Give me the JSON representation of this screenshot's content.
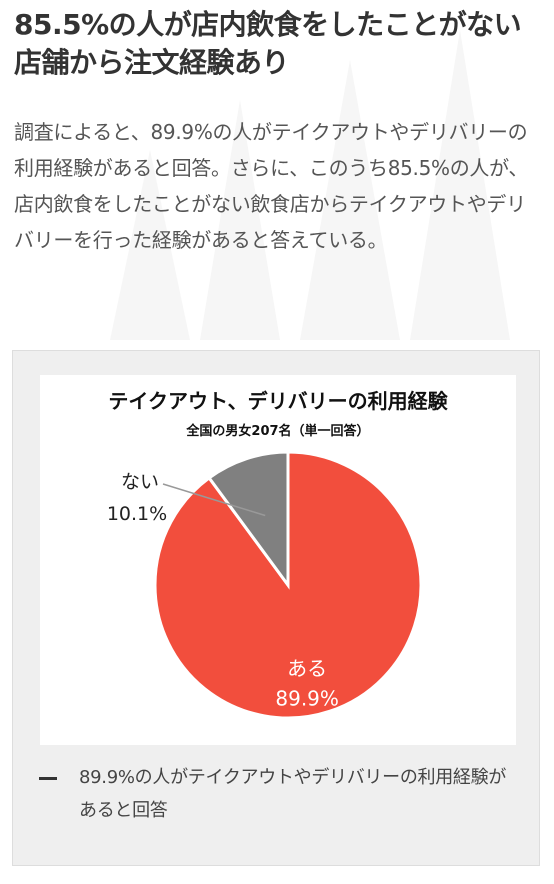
{
  "article": {
    "headline": "85.5%の人が店内飲食をしたことがない店舗から注文経験あり",
    "body": "調査によると、89.9%の人がテイクアウトやデリバリーの利用経験があると回答。さらに、このうち85.5%の人が、店内飲食をしたことがない飲食店からテイクアウトやデリバリーを行った経験があると答えている。"
  },
  "figure": {
    "caption": "89.9%の人がテイクアウトやデリバリーの利用経験があると回答"
  },
  "chart_data": {
    "type": "pie",
    "title": "テイクアウト、デリバリーの利用経験",
    "subtitle": "全国の男女207名（単一回答）",
    "slices": [
      {
        "label": "ある",
        "value": 89.9,
        "value_label": "89.9%",
        "color": "#f24e3d"
      },
      {
        "label": "ない",
        "value": 10.1,
        "value_label": "10.1%",
        "color": "#808080"
      }
    ],
    "start": "12 o'clock",
    "direction": "counterclockwise for ない slice"
  },
  "colors": {
    "accent_red": "#f24e3d",
    "slice_gray": "#808080",
    "card_background": "#efefef"
  }
}
